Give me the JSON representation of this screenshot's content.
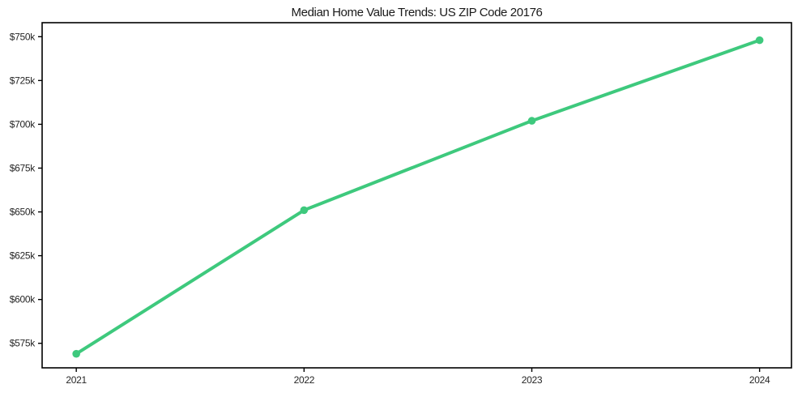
{
  "chart_data": {
    "type": "line",
    "title": "Median Home Value Trends: US ZIP Code 20176",
    "xlabel": "",
    "ylabel": "",
    "x": [
      2021,
      2022,
      2023,
      2024
    ],
    "x_tick_labels": [
      "2021",
      "2022",
      "2023",
      "2024"
    ],
    "series": [
      {
        "name": "Median Home Value",
        "values": [
          569000,
          651000,
          702000,
          748000
        ],
        "color": "#3ec97d"
      }
    ],
    "y_ticks": [
      575000,
      600000,
      625000,
      650000,
      675000,
      700000,
      725000,
      750000
    ],
    "y_tick_labels": [
      "$575k",
      "$600k",
      "$625k",
      "$650k",
      "$675k",
      "$700k",
      "$725k",
      "$750k"
    ],
    "ylim": [
      561000,
      758000
    ],
    "xlim": [
      2020.85,
      2024.14
    ],
    "grid": false,
    "legend_position": "none",
    "spine_color": "#000000",
    "background_color": "#ffffff"
  }
}
